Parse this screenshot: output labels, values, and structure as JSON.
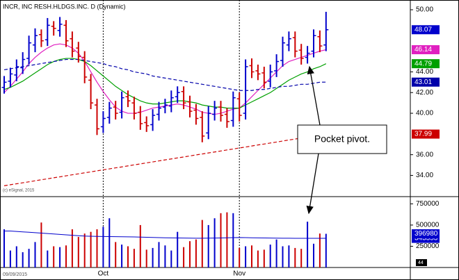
{
  "chart_data": {
    "type": "ohlc",
    "title": "INCR, INC RESH.HLDGS.INC. D (Dynamic)",
    "copyright": "(c) eSignal, 2015",
    "x_start_label": "09/09/2015",
    "corner_label": "44",
    "annotation": "Pocket pivot.",
    "categories": [
      null,
      null,
      null,
      null,
      null,
      null,
      null,
      null,
      null,
      null,
      null,
      null,
      null,
      null,
      null,
      null,
      "Oct",
      null,
      null,
      null,
      null,
      null,
      null,
      null,
      null,
      null,
      null,
      null,
      null,
      null,
      null,
      null,
      null,
      null,
      null,
      null,
      null,
      null,
      "Nov",
      null,
      null,
      null,
      null,
      null,
      null,
      null,
      null,
      null,
      null,
      null,
      null,
      null,
      null
    ],
    "up_color": "#0000cc",
    "down_color": "#cc0000",
    "open": [
      42.5,
      43.1,
      43.7,
      44.4,
      45.3,
      46.6,
      47.6,
      47.1,
      48.4,
      48.0,
      48.5,
      47.2,
      46.3,
      45.4,
      43.2,
      40.8,
      38.7,
      39.6,
      40.6,
      40.1,
      41.6,
      41.0,
      40.1,
      39.1,
      38.9,
      39.9,
      40.6,
      40.7,
      41.6,
      42.1,
      41.1,
      40.3,
      39.6,
      38.1,
      39.9,
      40.6,
      39.9,
      39.3,
      41.4,
      40.0,
      44.6,
      44.1,
      43.9,
      43.1,
      44.1,
      45.1,
      46.6,
      47.3,
      46.1,
      45.4,
      46.0,
      47.4,
      46.6
    ],
    "high": [
      43.6,
      44.4,
      45.2,
      45.9,
      47.5,
      48.2,
      48.1,
      49.2,
      48.9,
      49.3,
      49.0,
      47.9,
      46.9,
      46.0,
      43.8,
      41.4,
      40.2,
      41.1,
      41.2,
      42.1,
      42.2,
      41.6,
      40.7,
      39.7,
      40.4,
      41.1,
      41.4,
      42.2,
      42.6,
      42.6,
      41.7,
      40.9,
      40.2,
      40.7,
      41.2,
      41.2,
      40.5,
      42.1,
      42.0,
      45.2,
      45.3,
      44.7,
      44.5,
      44.7,
      45.7,
      47.4,
      47.9,
      47.9,
      46.7,
      46.5,
      48.1,
      48.0,
      49.8
    ],
    "low": [
      41.9,
      42.5,
      43.1,
      43.8,
      44.7,
      45.9,
      46.4,
      46.5,
      47.5,
      47.4,
      46.4,
      45.4,
      44.9,
      42.9,
      40.4,
      37.9,
      38.1,
      39.0,
      39.4,
      39.5,
      40.6,
      39.4,
      38.4,
      38.2,
      38.3,
      39.3,
      40.0,
      40.1,
      41.0,
      40.4,
      39.6,
      38.9,
      37.2,
      37.5,
      39.3,
      39.2,
      38.6,
      38.7,
      39.2,
      39.4,
      43.4,
      43.2,
      42.4,
      42.5,
      43.5,
      44.5,
      46.0,
      45.4,
      44.7,
      44.8,
      45.4,
      45.9,
      46.0
    ],
    "close": [
      43.0,
      43.8,
      44.5,
      45.2,
      46.8,
      47.5,
      47.0,
      48.5,
      48.2,
      48.6,
      47.0,
      46.0,
      45.5,
      43.5,
      41.0,
      38.5,
      39.5,
      40.5,
      40.0,
      41.5,
      41.2,
      40.0,
      39.0,
      38.8,
      39.8,
      40.5,
      40.8,
      41.5,
      42.0,
      41.0,
      40.2,
      39.5,
      37.8,
      40.0,
      40.5,
      39.8,
      39.2,
      41.5,
      39.8,
      44.5,
      44.0,
      43.8,
      43.0,
      44.0,
      45.0,
      46.8,
      47.2,
      46.0,
      45.3,
      45.8,
      47.5,
      46.5,
      48.07
    ],
    "last_color": "#0000cc",
    "lines": [
      {
        "color": "#e020c0",
        "dashed": false,
        "values": [
          42.0,
          42.6,
          43.3,
          44.0,
          44.8,
          45.4,
          45.9,
          46.3,
          46.6,
          46.7,
          46.6,
          46.3,
          45.8,
          45.0,
          44.0,
          43.0,
          42.1,
          41.3,
          40.6,
          40.2,
          40.0,
          40.0,
          40.1,
          40.3,
          40.5,
          40.6,
          40.7,
          40.8,
          40.9,
          40.8,
          40.6,
          40.4,
          40.1,
          40.0,
          39.9,
          40.0,
          40.2,
          40.4,
          40.5,
          41.0,
          41.6,
          42.2,
          42.8,
          43.4,
          44.0,
          44.6,
          45.0,
          45.2,
          45.4,
          45.6,
          45.8,
          46.0,
          46.14
        ]
      },
      {
        "color": "#00a000",
        "dashed": false,
        "values": [
          42.3,
          42.5,
          42.8,
          43.1,
          43.5,
          43.9,
          44.3,
          44.7,
          45.0,
          45.2,
          45.3,
          45.3,
          45.2,
          45.0,
          44.6,
          44.1,
          43.6,
          43.1,
          42.6,
          42.2,
          41.8,
          41.5,
          41.2,
          41.0,
          40.9,
          40.9,
          41.0,
          41.1,
          41.2,
          41.2,
          41.1,
          41.0,
          40.8,
          40.7,
          40.6,
          40.6,
          40.5,
          40.5,
          40.5,
          40.8,
          41.1,
          41.4,
          41.7,
          42.0,
          42.4,
          42.8,
          43.2,
          43.5,
          43.8,
          44.0,
          44.3,
          44.5,
          44.79
        ]
      },
      {
        "color": "#0000aa",
        "dashed": true,
        "values": [
          44.2,
          44.3,
          44.4,
          44.5,
          44.6,
          44.7,
          44.8,
          44.9,
          45.0,
          45.1,
          45.2,
          45.2,
          45.2,
          45.1,
          45.0,
          44.9,
          44.8,
          44.6,
          44.5,
          44.3,
          44.2,
          44.0,
          43.9,
          43.8,
          43.6,
          43.5,
          43.4,
          43.3,
          43.2,
          43.1,
          43.0,
          42.9,
          42.8,
          42.7,
          42.6,
          42.5,
          42.4,
          42.3,
          42.2,
          42.2,
          42.2,
          42.3,
          42.3,
          42.4,
          42.5,
          42.6,
          42.6,
          42.7,
          42.8,
          42.8,
          42.9,
          43.0,
          43.01
        ]
      },
      {
        "color": "#cc0000",
        "dashed": true,
        "values": [
          33.0,
          33.1,
          33.19,
          33.29,
          33.38,
          33.48,
          33.58,
          33.67,
          33.77,
          33.86,
          33.96,
          34.06,
          34.15,
          34.25,
          34.34,
          34.44,
          34.54,
          34.63,
          34.73,
          34.82,
          34.92,
          35.02,
          35.11,
          35.21,
          35.3,
          35.4,
          35.5,
          35.59,
          35.69,
          35.78,
          35.88,
          35.98,
          36.07,
          36.17,
          36.26,
          36.36,
          36.46,
          36.55,
          36.65,
          36.74,
          36.84,
          36.94,
          37.03,
          37.13,
          37.22,
          37.32,
          37.42,
          37.51,
          37.61,
          37.7,
          37.8,
          37.9,
          37.99
        ]
      }
    ],
    "ylim": [
      31.95,
      50.74
    ],
    "yticks": [
      {
        "value": 34,
        "label": "34.00"
      },
      {
        "value": 36,
        "label": "36.00"
      },
      {
        "value": 40,
        "label": "40.00"
      },
      {
        "value": 42,
        "label": "42.00"
      },
      {
        "value": 44,
        "label": "44.00"
      },
      {
        "value": 50,
        "label": "50.00"
      }
    ],
    "volume": {
      "values": [
        450000,
        200000,
        250000,
        180000,
        220000,
        300000,
        530000,
        200000,
        250000,
        240000,
        260000,
        450000,
        360000,
        400000,
        420000,
        450000,
        480000,
        580000,
        300000,
        270000,
        250000,
        220000,
        500000,
        210000,
        230000,
        300000,
        260000,
        200000,
        420000,
        240000,
        310000,
        330000,
        560000,
        500000,
        580000,
        640000,
        650000,
        640000,
        230000,
        250000,
        260000,
        200000,
        210000,
        270000,
        330000,
        250000,
        260000,
        230000,
        220000,
        540000,
        280000,
        400000,
        396980
      ],
      "average": {
        "color": "#0000cc",
        "values": [
          430000,
          430000,
          425000,
          420000,
          415000,
          410000,
          405000,
          400000,
          395000,
          390000,
          385000,
          380000,
          375000,
          370000,
          368000,
          366000,
          365000,
          364000,
          363000,
          362000,
          361000,
          360000,
          358000,
          356000,
          354000,
          352000,
          350000,
          349000,
          348000,
          347000,
          346000,
          345000,
          345000,
          346000,
          347000,
          348000,
          350000,
          352000,
          353000,
          352000,
          350000,
          349000,
          348000,
          347000,
          346000,
          345000,
          345000,
          344000,
          344000,
          344000,
          343500,
          343400,
          343353
        ]
      },
      "ylim": [
        0,
        835000
      ],
      "yticks": [
        250000,
        500000,
        750000
      ]
    },
    "vgrid": true
  }
}
